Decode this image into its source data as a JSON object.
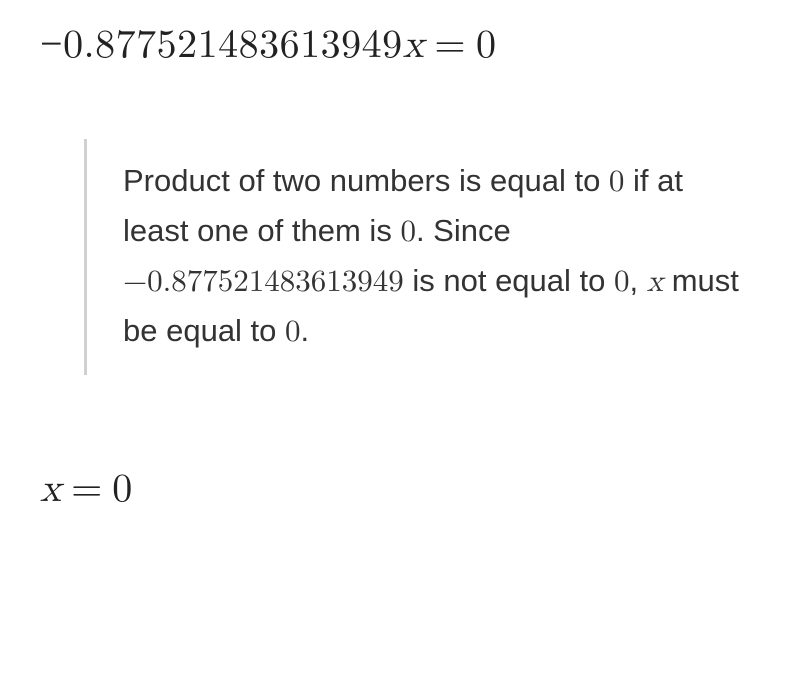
{
  "equation_top": {
    "coefficient": "0.877521483613949",
    "variable": "x",
    "rhs": "0",
    "sign": "−"
  },
  "explanation": {
    "line1_a": "Product of two numbers is equal to ",
    "zero1": "0",
    "line1_b": " if at least one of them is ",
    "zero2": "0",
    "line1_c": ". Since ",
    "signed_coeff": "−0.877521483613949",
    "line2_a": " is not equal to ",
    "zero3": "0",
    "line2_b": ", ",
    "var": "x",
    "line2_c": " must be equal to ",
    "zero4": "0",
    "line2_d": "."
  },
  "equation_bottom": {
    "variable": "x",
    "rhs": "0"
  },
  "colors": {
    "text": "#222222",
    "explain_text": "#333333",
    "border": "#d0d0d0",
    "background": "#ffffff"
  },
  "fontsizes": {
    "equation": 40,
    "explanation": 31
  }
}
